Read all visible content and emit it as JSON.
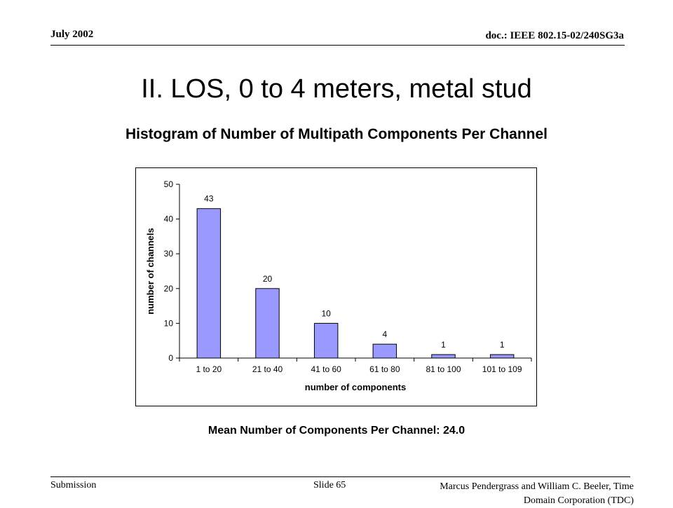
{
  "header": {
    "date": "July 2002",
    "doc": "doc.: IEEE 802.15-02/240SG3a"
  },
  "slide": {
    "title": "II.  LOS, 0 to 4 meters, metal stud",
    "subtitle": "Histogram of Number of Multipath Components Per Channel",
    "mean_text": "Mean Number of Components Per Channel:  24.0"
  },
  "footer": {
    "left": "Submission",
    "middle": "Slide 65",
    "right_line1": "Marcus Pendergrass and William  C. Beeler, Time",
    "right_line2": "Domain Corporation (TDC)"
  },
  "chart_data": {
    "type": "bar",
    "categories": [
      "1 to 20",
      "21 to 40",
      "41 to 60",
      "61 to 80",
      "81 to 100",
      "101 to 109"
    ],
    "values": [
      43,
      20,
      10,
      4,
      1,
      1
    ],
    "xlabel": "number of components",
    "ylabel": "number of channels",
    "ylim": [
      0,
      50
    ],
    "yticks": [
      0,
      10,
      20,
      30,
      40,
      50
    ],
    "data_labels": true,
    "grid": false,
    "legend": "none",
    "bar_color": "#9999ff",
    "bar_edge": "#000000"
  }
}
